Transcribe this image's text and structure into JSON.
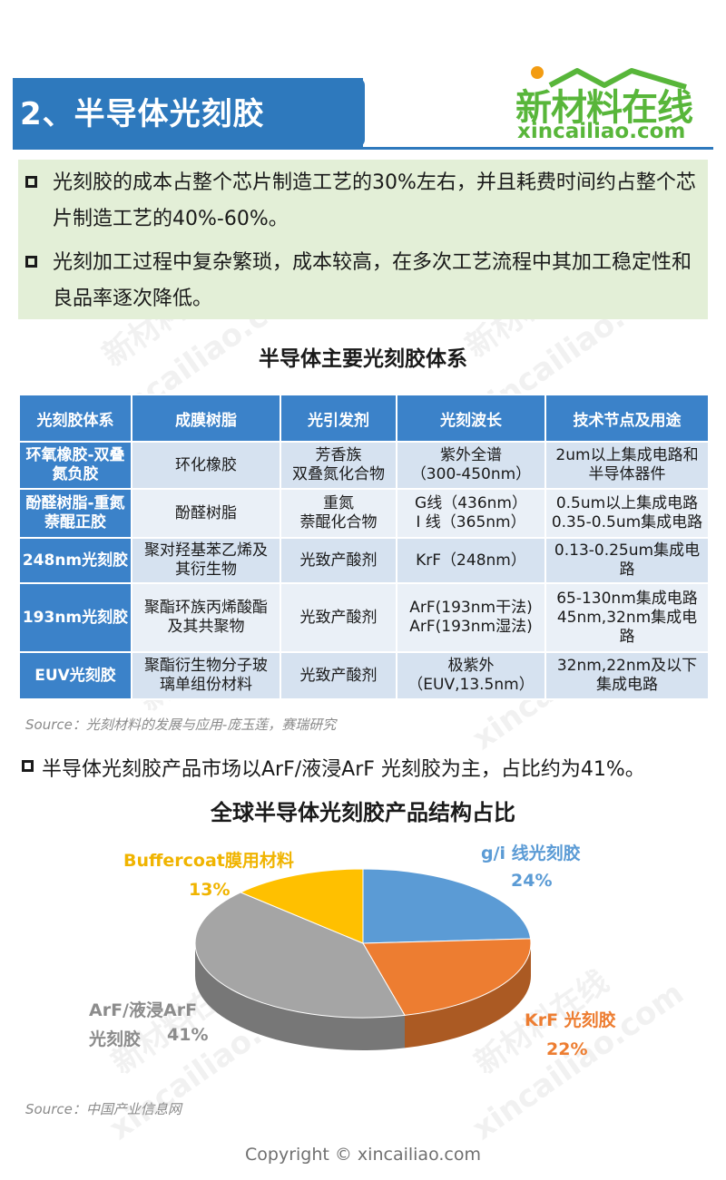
{
  "header": {
    "title": "2、半导体光刻胶",
    "logo_cn": "新材料在线",
    "logo_en": "xincailiao.com"
  },
  "bullets": [
    "光刻胶的成本占整个芯片制造工艺的30%左右，并且耗费时间约占整个芯片制造工艺的40%-60%。",
    "光刻加工过程中复杂繁琐，成本较高，在多次工艺流程中其加工稳定性和良品率逐次降低。"
  ],
  "table": {
    "title": "半导体主要光刻胶体系",
    "headers": [
      "光刻胶体系",
      "成膜树脂",
      "光引发剂",
      "光刻波长",
      "技术节点及用途"
    ],
    "rows": [
      [
        "环氧橡胶-双叠氮负胶",
        "环化橡胶",
        "芳香族\n双叠氮化合物",
        "紫外全谱\n（300-450nm）",
        "2um以上集成电路和\n半导体器件"
      ],
      [
        "酚醛树脂-重氮萘醌正胶",
        "酚醛树脂",
        "重氮\n萘醌化合物",
        "G线（436nm）\nI 线（365nm）",
        "0.5um以上集成电路\n0.35-0.5um集成电路"
      ],
      [
        "248nm光刻胶",
        "聚对羟基苯乙烯及\n其衍生物",
        "光致产酸剂",
        "KrF（248nm）",
        "0.13-0.25um集成电\n路"
      ],
      [
        "193nm光刻胶",
        "聚酯环族丙烯酸酯\n及其共聚物",
        "光致产酸剂",
        "ArF(193nm干法)\nArF(193nm湿法)",
        "65-130nm集成电路\n45nm,32nm集成电\n路"
      ],
      [
        "EUV光刻胶",
        "聚酯衍生物分子玻\n璃单组份材料",
        "光致产酸剂",
        "极紫外\n（EUV,13.5nm）",
        "32nm,22nm及以下\n集成电路"
      ]
    ],
    "source": "Source：光刻材料的发展与应用-庞玉莲，赛瑞研究"
  },
  "bullet3": "半导体光刻胶产品市场以ArF/液浸ArF 光刻胶为主，占比约为41%。",
  "chart_data": {
    "type": "pie",
    "title": "全球半导体光刻胶产品结构占比",
    "slices": [
      {
        "label": "g/i 线光刻胶",
        "value": 24,
        "value_label": "24%",
        "color": "#5b9bd5"
      },
      {
        "label": "KrF 光刻胶",
        "value": 22,
        "value_label": "22%",
        "color": "#ed7d31"
      },
      {
        "label": "ArF/液浸ArF\n光刻胶",
        "value": 41,
        "value_label": "41%",
        "color": "#a5a5a5"
      },
      {
        "label": "Buffercoat膜用材料",
        "value": 13,
        "value_label": "13%",
        "color": "#ffc000"
      }
    ],
    "source": "Source：中国产业信息网"
  },
  "watermark": [
    "新材料在线",
    "xincailiao.com"
  ],
  "footer": {
    "copyright": "Copyright © xincailiao.com"
  }
}
